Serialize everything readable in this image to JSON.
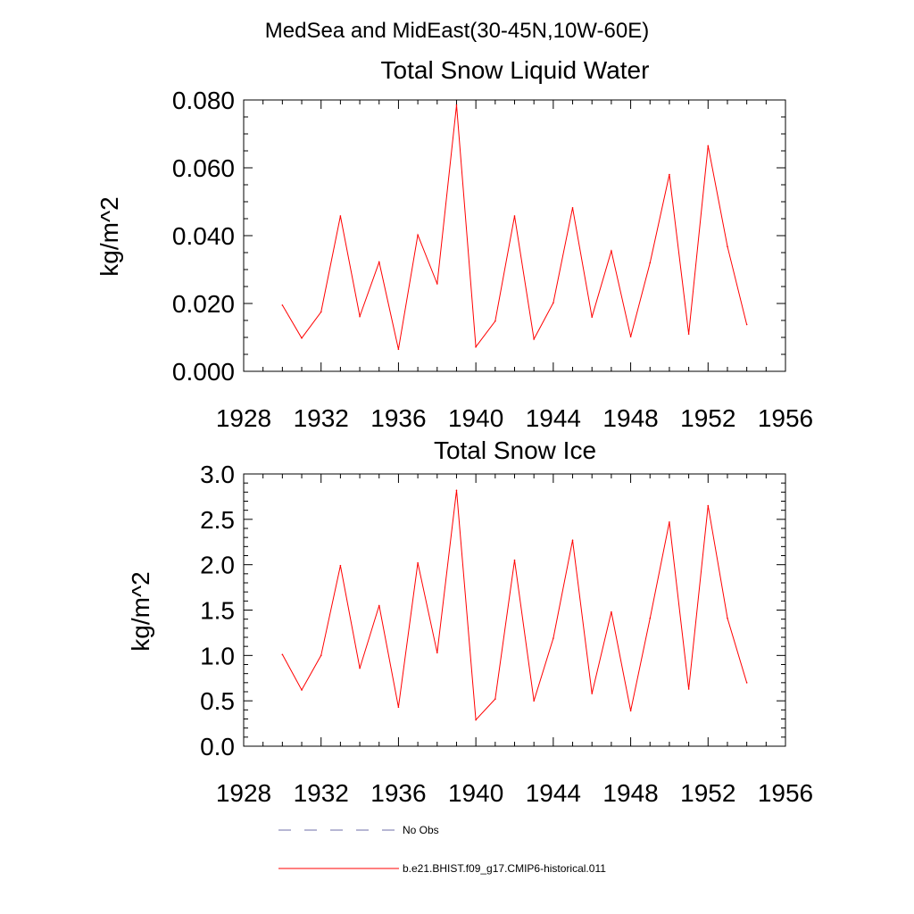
{
  "figure": {
    "title": "MedSea and MidEast(30-45N,10W-60E)"
  },
  "colors": {
    "series_line": "#ff0000",
    "no_obs_line": "#6f6fa8",
    "axis": "#000000",
    "background": "#ffffff"
  },
  "legend": {
    "placement": "bottom",
    "entries": [
      {
        "label": "No Obs",
        "style": "dashed",
        "color": "#6f6fa8"
      },
      {
        "label": "b.e21.BHIST.f09_g17.CMIP6-historical.011",
        "style": "solid",
        "color": "#ff0000"
      }
    ]
  },
  "chart_data": [
    {
      "type": "line",
      "title": "Total Snow Liquid Water",
      "xlabel": "",
      "ylabel": "kg/m^2",
      "xlim": [
        1928,
        1956
      ],
      "ylim": [
        0.0,
        0.08
      ],
      "xticks": [
        1928,
        1932,
        1936,
        1940,
        1944,
        1948,
        1952,
        1956
      ],
      "xtick_labels": [
        "1928",
        "1932",
        "1936",
        "1940",
        "1944",
        "1948",
        "1952",
        "1956"
      ],
      "yticks": [
        0.0,
        0.02,
        0.04,
        0.06,
        0.08
      ],
      "ytick_labels": [
        "0.000",
        "0.020",
        "0.040",
        "0.060",
        "0.080"
      ],
      "y_minor_step": 0.005,
      "grid": false,
      "series": [
        {
          "name": "b.e21.BHIST.f09_g17.CMIP6-historical.011",
          "color": "#ff0000",
          "x": [
            1930,
            1931,
            1932,
            1933,
            1934,
            1935,
            1936,
            1937,
            1938,
            1939,
            1940,
            1941,
            1942,
            1943,
            1944,
            1945,
            1946,
            1947,
            1948,
            1949,
            1950,
            1951,
            1952,
            1953,
            1954
          ],
          "y": [
            0.0195,
            0.0098,
            0.0175,
            0.0458,
            0.0162,
            0.0322,
            0.0065,
            0.0402,
            0.0258,
            0.0785,
            0.0072,
            0.0148,
            0.0458,
            0.0095,
            0.0202,
            0.0482,
            0.016,
            0.0355,
            0.0102,
            0.032,
            0.058,
            0.011,
            0.0665,
            0.0368,
            0.0138
          ]
        }
      ]
    },
    {
      "type": "line",
      "title": "Total Snow Ice",
      "xlabel": "",
      "ylabel": "kg/m^2",
      "xlim": [
        1928,
        1956
      ],
      "ylim": [
        0.0,
        3.0
      ],
      "xticks": [
        1928,
        1932,
        1936,
        1940,
        1944,
        1948,
        1952,
        1956
      ],
      "xtick_labels": [
        "1928",
        "1932",
        "1936",
        "1940",
        "1944",
        "1948",
        "1952",
        "1956"
      ],
      "yticks": [
        0.0,
        0.5,
        1.0,
        1.5,
        2.0,
        2.5,
        3.0
      ],
      "ytick_labels": [
        "0.0",
        "0.5",
        "1.0",
        "1.5",
        "2.0",
        "2.5",
        "3.0"
      ],
      "y_minor_step": 0.1,
      "grid": false,
      "series": [
        {
          "name": "b.e21.BHIST.f09_g17.CMIP6-historical.011",
          "color": "#ff0000",
          "x": [
            1930,
            1931,
            1932,
            1933,
            1934,
            1935,
            1936,
            1937,
            1938,
            1939,
            1940,
            1941,
            1942,
            1943,
            1944,
            1945,
            1946,
            1947,
            1948,
            1949,
            1950,
            1951,
            1952,
            1953,
            1954
          ],
          "y": [
            1.01,
            0.62,
            1.0,
            1.99,
            0.86,
            1.55,
            0.43,
            2.02,
            1.03,
            2.82,
            0.29,
            0.52,
            2.05,
            0.5,
            1.19,
            2.27,
            0.58,
            1.48,
            0.39,
            1.41,
            2.47,
            0.63,
            2.65,
            1.41,
            0.7
          ]
        }
      ]
    }
  ]
}
